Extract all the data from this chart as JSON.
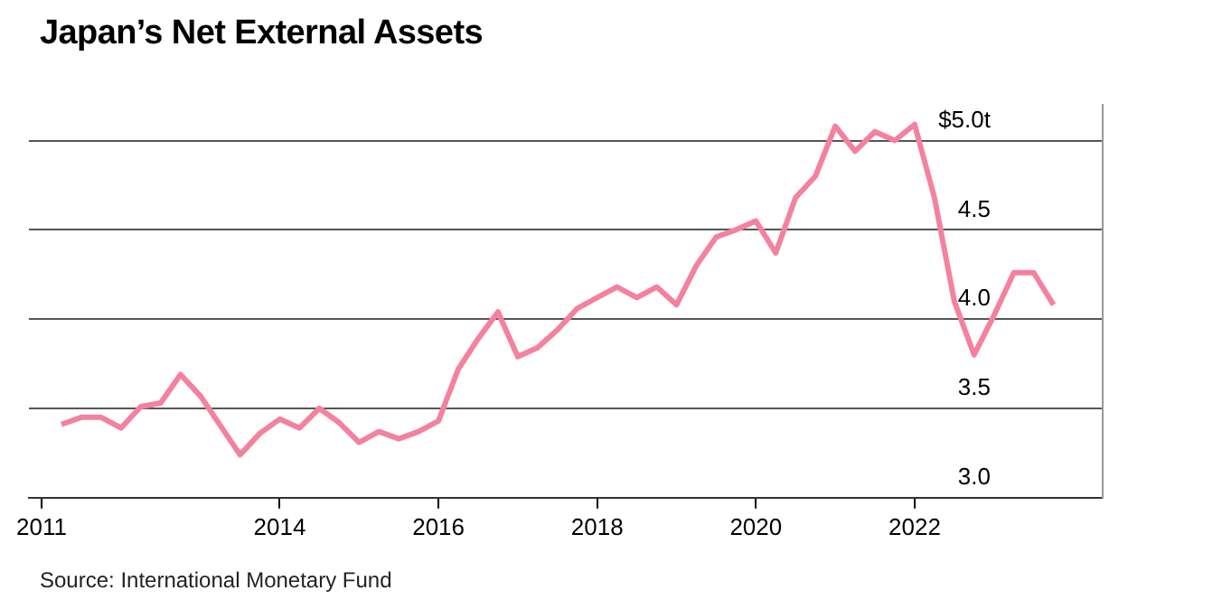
{
  "chart_data": {
    "type": "line",
    "title": "Japan’s Net External Assets",
    "annotations": [
      "Source: International Monetary Fund"
    ],
    "x": [
      2011.25,
      2011.5,
      2011.75,
      2012,
      2012.25,
      2012.5,
      2012.75,
      2013,
      2013.5,
      2013.75,
      2014,
      2014.25,
      2014.5,
      2014.75,
      2015,
      2015.25,
      2015.5,
      2015.75,
      2016,
      2016.25,
      2016.5,
      2016.75,
      2017,
      2017.25,
      2017.5,
      2017.75,
      2018,
      2018.25,
      2018.5,
      2018.75,
      2019,
      2019.25,
      2019.5,
      2019.75,
      2020,
      2020.25,
      2020.5,
      2020.75,
      2021,
      2021.25,
      2021.5,
      2021.75,
      2022,
      2022.25,
      2022.5,
      2022.75,
      2023,
      2023.25,
      2023.5,
      2023.75
    ],
    "series": [
      {
        "color": "#f4819e",
        "values": [
          3.41,
          3.45,
          3.45,
          3.39,
          3.51,
          3.53,
          3.69,
          3.57,
          3.24,
          3.36,
          3.44,
          3.39,
          3.5,
          3.42,
          3.31,
          3.37,
          3.33,
          3.37,
          3.43,
          3.72,
          3.89,
          4.04,
          3.79,
          3.84,
          3.94,
          4.06,
          4.12,
          4.18,
          4.12,
          4.18,
          4.08,
          4.3,
          4.46,
          4.5,
          4.55,
          4.37,
          4.68,
          4.8,
          5.08,
          4.94,
          5.05,
          5.0,
          5.09,
          4.68,
          4.1,
          3.8,
          4.02,
          4.26,
          4.26,
          4.08
        ]
      }
    ],
    "xlim": [
      2010.84,
      2024.37
    ],
    "xticks": [
      2011,
      2014,
      2016,
      2018,
      2020,
      2022
    ],
    "ylim": [
      3.0,
      5.2
    ],
    "yticks": [
      {
        "value": 3,
        "label": "3.0"
      },
      3.5,
      {
        "value": 4,
        "label": "4.0"
      },
      4.5,
      {
        "value": 5,
        "label": "$5.0t"
      }
    ],
    "grid": "y",
    "legend": false,
    "marker": "none",
    "line_style": "solid"
  }
}
